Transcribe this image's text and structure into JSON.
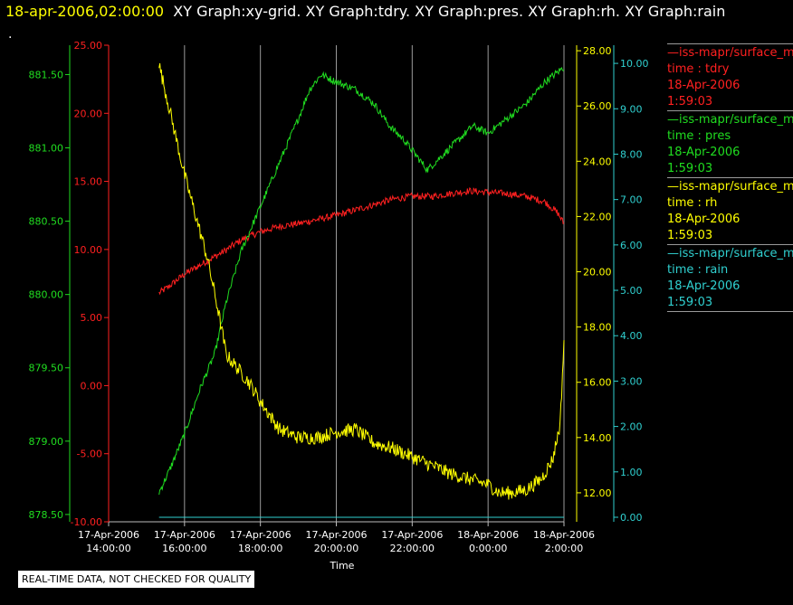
{
  "header": {
    "timestamp": "18-apr-2006,02:00:00",
    "graphs": "XY Graph:xy-grid.  XY Graph:tdry.  XY Graph:pres.  XY Graph:rh.  XY Graph:rain",
    "dot": "."
  },
  "disclaimer": "REAL-TIME DATA, NOT CHECKED FOR QUALITY",
  "legend": [
    {
      "name": "—iss-mapr/surface_m",
      "field": "time : tdry",
      "date": "18-Apr-2006",
      "time": "1:59:03",
      "color": "#ff2020"
    },
    {
      "name": "—iss-mapr/surface_m",
      "field": "time : pres",
      "date": "18-Apr-2006",
      "time": "1:59:03",
      "color": "#20dd20"
    },
    {
      "name": "—iss-mapr/surface_m",
      "field": "time : rh",
      "date": "18-Apr-2006",
      "time": "1:59:03",
      "color": "#ffff00"
    },
    {
      "name": "—iss-mapr/surface_m",
      "field": "time : rain",
      "date": "18-Apr-2006",
      "time": "1:59:03",
      "color": "#30d0d0"
    }
  ],
  "chart_data": {
    "type": "line",
    "xlabel": "Time",
    "x_ticks": [
      {
        "hours": 14,
        "date": "17-Apr-2006",
        "time": "14:00:00"
      },
      {
        "hours": 16,
        "date": "17-Apr-2006",
        "time": "16:00:00"
      },
      {
        "hours": 18,
        "date": "17-Apr-2006",
        "time": "18:00:00"
      },
      {
        "hours": 20,
        "date": "17-Apr-2006",
        "time": "20:00:00"
      },
      {
        "hours": 22,
        "date": "17-Apr-2006",
        "time": "22:00:00"
      },
      {
        "hours": 24,
        "date": "18-Apr-2006",
        "time": "0:00:00"
      },
      {
        "hours": 26,
        "date": "18-Apr-2006",
        "time": "2:00:00"
      }
    ],
    "xlim": [
      "17-Apr-2006 14:00:00",
      "18-Apr-2006 2:00:00"
    ],
    "grid": "vertical",
    "axes": [
      {
        "id": "pres",
        "color": "#20dd20",
        "side": "left-outer",
        "ylim": [
          878.45,
          881.7
        ],
        "ticks": [
          "878.50",
          "879.00",
          "879.50",
          "880.00",
          "880.50",
          "881.00",
          "881.50"
        ]
      },
      {
        "id": "tdry",
        "color": "#ff2020",
        "side": "left-inner",
        "ylim": [
          -10,
          25
        ],
        "ticks": [
          "-10.00",
          "-5.00",
          "0.00",
          "5.00",
          "10.00",
          "15.00",
          "20.00",
          "25.00"
        ]
      },
      {
        "id": "rh",
        "color": "#ffff00",
        "side": "right-inner",
        "ylim": [
          10.95,
          28.2
        ],
        "ticks": [
          "12.00",
          "14.00",
          "16.00",
          "18.00",
          "20.00",
          "22.00",
          "24.00",
          "26.00",
          "28.00"
        ]
      },
      {
        "id": "rain",
        "color": "#30d0d0",
        "side": "right-outer",
        "ylim": [
          -0.1,
          10.4
        ],
        "ticks": [
          "0.00",
          "1.00",
          "2.00",
          "3.00",
          "4.00",
          "5.00",
          "6.00",
          "7.00",
          "8.00",
          "9.00",
          "10.00"
        ]
      }
    ],
    "series": [
      {
        "axis": "tdry",
        "color": "#ff2020",
        "noise": 0.25,
        "x": [
          15.33,
          15.6,
          16.0,
          16.5,
          17.0,
          17.5,
          18.0,
          18.5,
          19.0,
          19.5,
          20.0,
          20.5,
          21.0,
          21.5,
          22.0,
          22.5,
          23.0,
          23.5,
          24.0,
          24.5,
          25.0,
          25.5,
          25.83,
          26.0
        ],
        "y": [
          6.8,
          7.3,
          8.2,
          9.0,
          9.8,
          10.7,
          11.3,
          11.7,
          11.9,
          12.2,
          12.5,
          12.9,
          13.3,
          13.7,
          13.9,
          13.9,
          14.1,
          14.3,
          14.2,
          14.1,
          13.9,
          13.5,
          12.7,
          11.9
        ]
      },
      {
        "axis": "pres",
        "color": "#20dd20",
        "noise": 0.025,
        "x": [
          15.33,
          15.6,
          16.0,
          16.4,
          16.8,
          17.1,
          17.5,
          18.0,
          18.5,
          19.0,
          19.3,
          19.6,
          20.0,
          20.5,
          21.0,
          21.4,
          21.8,
          22.1,
          22.4,
          22.8,
          23.2,
          23.6,
          24.0,
          24.5,
          25.0,
          25.5,
          26.0
        ],
        "y": [
          878.65,
          878.8,
          879.05,
          879.35,
          879.6,
          879.95,
          880.3,
          880.6,
          880.9,
          881.2,
          881.4,
          881.5,
          881.45,
          881.4,
          881.3,
          881.15,
          881.05,
          880.95,
          880.85,
          880.95,
          881.05,
          881.15,
          881.1,
          881.2,
          881.3,
          881.45,
          881.55
        ]
      },
      {
        "axis": "rh",
        "color": "#ffff00",
        "noise": 0.25,
        "x": [
          15.33,
          15.5,
          15.75,
          16.0,
          16.3,
          16.6,
          16.9,
          17.1,
          17.4,
          17.7,
          18.0,
          18.5,
          19.0,
          19.5,
          20.0,
          20.5,
          21.0,
          21.5,
          22.0,
          22.5,
          23.0,
          23.5,
          24.0,
          24.3,
          24.6,
          25.0,
          25.4,
          25.7,
          25.9,
          26.0
        ],
        "y": [
          27.5,
          26.5,
          25.0,
          23.5,
          22.0,
          20.5,
          18.5,
          17.0,
          16.5,
          16.0,
          15.3,
          14.3,
          14.0,
          14.0,
          14.2,
          14.3,
          13.8,
          13.6,
          13.3,
          13.0,
          12.7,
          12.5,
          12.3,
          12.0,
          12.0,
          12.1,
          12.5,
          13.2,
          14.5,
          17.5
        ]
      },
      {
        "axis": "rain",
        "color": "#30d0d0",
        "noise": 0,
        "x": [
          15.33,
          26.0
        ],
        "y": [
          0.0,
          0.0
        ]
      }
    ]
  }
}
